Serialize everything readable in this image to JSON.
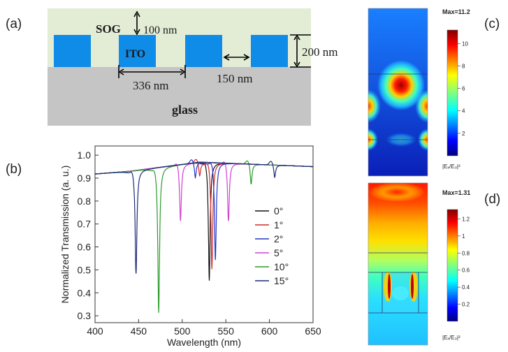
{
  "panels": {
    "a": {
      "label": "(a)",
      "sog": "SOG",
      "ito": "ITO",
      "glass": "glass",
      "dim_top": "100 nm",
      "dim_height": "200 nm",
      "dim_period": "336 nm",
      "dim_gap": "150 nm",
      "colors": {
        "sog": "#e3ecd5",
        "ito": "#0f8be8",
        "glass": "#c5c5c5"
      }
    },
    "b": {
      "label": "(b)"
    },
    "c": {
      "label": "(c)",
      "max_text": "Max=11.2",
      "cbar_label": "|Eₓ/E₀|²",
      "ticks": [
        "10",
        "8",
        "6",
        "4",
        "2"
      ],
      "tick_values": [
        10,
        8,
        6,
        4,
        2
      ],
      "range": [
        0,
        11.2
      ]
    },
    "d": {
      "label": "(d)",
      "max_text": "Max=1.31",
      "cbar_label": "|Eₓ/E₀|²",
      "ticks": [
        "1.2",
        "1",
        "0.8",
        "0.6",
        "0.4",
        "0.2"
      ],
      "tick_values": [
        1.2,
        1.0,
        0.8,
        0.6,
        0.4,
        0.2
      ],
      "range": [
        0,
        1.31
      ]
    }
  },
  "chart_data": {
    "type": "line",
    "xlabel": "Wavelength (nm)",
    "ylabel": "Normalized Transmission (a. u.)",
    "xlim": [
      400,
      650
    ],
    "ylim": [
      0.27,
      1.04
    ],
    "xticks": [
      400,
      450,
      500,
      550,
      600,
      650
    ],
    "yticks": [
      0.3,
      0.4,
      0.5,
      0.6,
      0.7,
      0.8,
      0.9,
      1.0
    ],
    "ytick_labels": [
      "0.3",
      "0.4",
      "0.5",
      "0.6",
      "0.7",
      "0.8",
      "0.9",
      "1.0"
    ],
    "legend_position": "right",
    "series": [
      {
        "name": "0°",
        "color": "#111111",
        "dips": [
          {
            "x": 531,
            "y": 0.45
          }
        ]
      },
      {
        "name": "1°",
        "color": "#d22a2a",
        "dips": [
          {
            "x": 520,
            "y": 0.91
          },
          {
            "x": 534,
            "y": 0.5
          }
        ]
      },
      {
        "name": "2°",
        "color": "#2233cc",
        "dips": [
          {
            "x": 515,
            "y": 0.9
          },
          {
            "x": 538,
            "y": 0.54
          }
        ]
      },
      {
        "name": "5°",
        "color": "#d040d0",
        "dips": [
          {
            "x": 498,
            "y": 0.71
          },
          {
            "x": 553,
            "y": 0.71
          }
        ]
      },
      {
        "name": "10°",
        "color": "#2a9a2a",
        "dips": [
          {
            "x": 473,
            "y": 0.31
          },
          {
            "x": 579,
            "y": 0.87
          }
        ]
      },
      {
        "name": "15°",
        "color": "#1c2a78",
        "dips": [
          {
            "x": 447,
            "y": 0.48
          },
          {
            "x": 606,
            "y": 0.9
          }
        ]
      }
    ]
  }
}
